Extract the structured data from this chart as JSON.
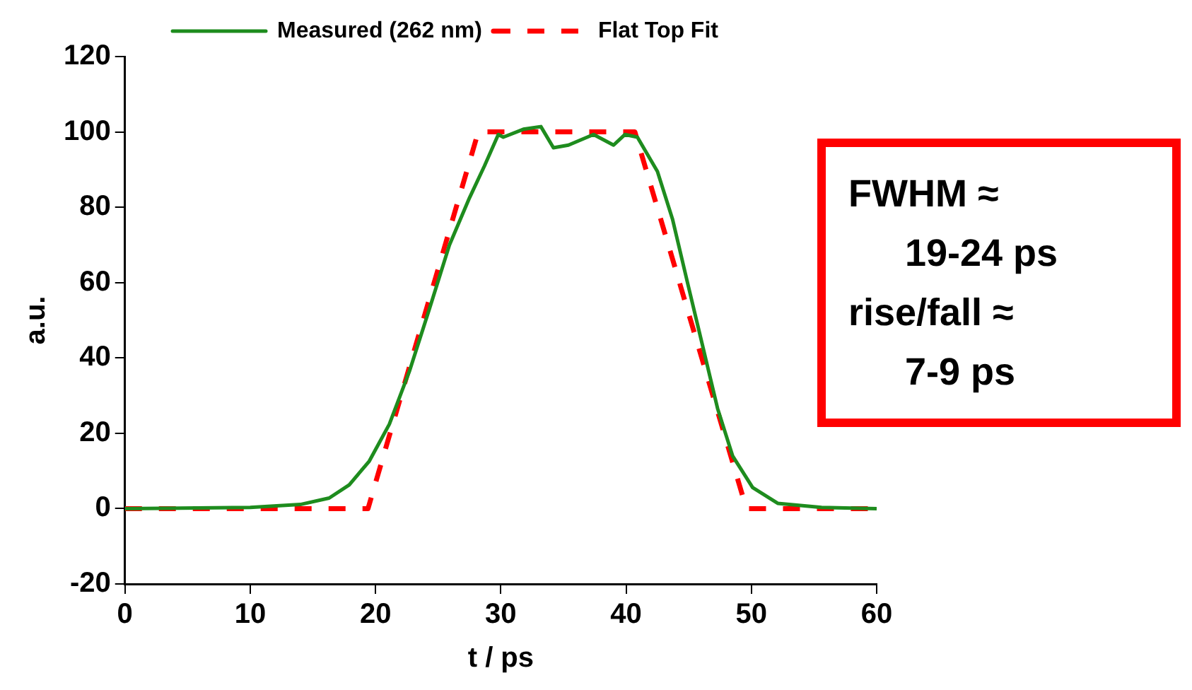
{
  "chart_data": {
    "type": "line",
    "xlabel": "t / ps",
    "ylabel": "a.u.",
    "xlim": [
      0,
      60
    ],
    "xticks": [
      0,
      10,
      20,
      30,
      40,
      50,
      60
    ],
    "ylim": [
      -20,
      120
    ],
    "yticks": [
      -20,
      0,
      20,
      40,
      60,
      80,
      100,
      120
    ],
    "grid": false,
    "legend": "top",
    "marker": "none",
    "annotations": [
      "FWHM ≈",
      "19-24 ps",
      "rise/fall ≈",
      "7-9 ps"
    ],
    "series": [
      {
        "name": "Measured (262 nm)",
        "color": "#1e8c1e",
        "line_style": "solid",
        "x": [
          0,
          10,
          14,
          16.3,
          17.9,
          19.5,
          21.1,
          22.7,
          24.3,
          25.9,
          27.5,
          28.7,
          29.8,
          30.2,
          31.8,
          33.2,
          34.2,
          35.4,
          37.4,
          39,
          39.9,
          40.9,
          42.5,
          43.7,
          44.9,
          46.1,
          47.3,
          48.5,
          50.1,
          52.1,
          55.6,
          60
        ],
        "values": [
          0,
          0.3,
          1.1,
          2.8,
          6.3,
          12.6,
          22.4,
          36.4,
          53,
          70,
          82.5,
          91,
          99.3,
          98.6,
          100.7,
          101.4,
          95.8,
          96.5,
          99.3,
          96.5,
          99.3,
          98.6,
          89.5,
          76.9,
          60,
          43.3,
          26.6,
          14,
          5.6,
          1.4,
          0.3,
          0
        ]
      },
      {
        "name": "Flat Top Fit",
        "color": "#ff0000",
        "line_style": "dashed",
        "x": [
          0,
          19.4,
          28.2,
          40.7,
          49.6,
          60
        ],
        "values": [
          0,
          0,
          100,
          100,
          0,
          0
        ]
      }
    ]
  }
}
